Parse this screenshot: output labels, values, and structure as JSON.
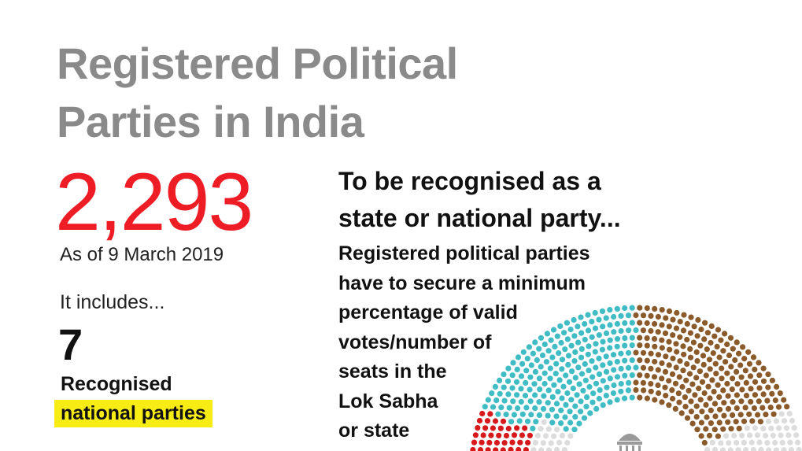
{
  "title": {
    "lines": [
      "Registered Political",
      "Parties in India"
    ]
  },
  "total": {
    "number": "2,293",
    "date": "As of 9 March 2019"
  },
  "includes": {
    "intro": "It includes...",
    "number": "7",
    "label": "Recognised",
    "highlight": "national parties"
  },
  "criteria": {
    "heading": [
      "To be recognised as a",
      "state or national party..."
    ],
    "body": [
      "Registered political parties",
      "have to secure a minimum",
      "percentage of valid",
      "votes/number of",
      "seats in the",
      "Lok Sabha",
      "or state"
    ]
  }
}
